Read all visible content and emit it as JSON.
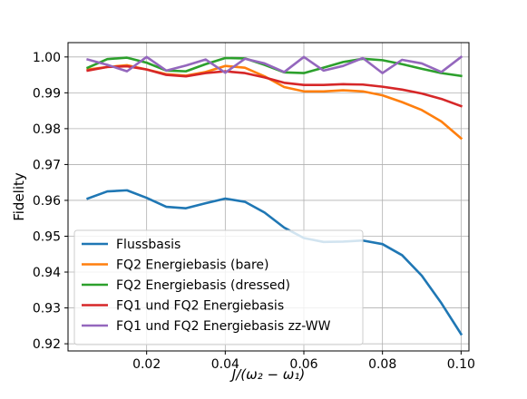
{
  "chart_data": {
    "type": "line",
    "title": "",
    "xlabel": "J/(ω₂ − ω₁)",
    "ylabel": "Fidelity",
    "xlim": [
      0.0,
      0.102
    ],
    "ylim": [
      0.918,
      1.004
    ],
    "x_ticks": [
      0.02,
      0.04,
      0.06,
      0.08,
      0.1
    ],
    "x_tick_labels": [
      "0.02",
      "0.04",
      "0.06",
      "0.08",
      "0.10"
    ],
    "y_ticks": [
      0.92,
      0.93,
      0.94,
      0.95,
      0.96,
      0.97,
      0.98,
      0.99,
      1.0
    ],
    "y_tick_labels": [
      "0.92",
      "0.93",
      "0.94",
      "0.95",
      "0.96",
      "0.97",
      "0.98",
      "0.99",
      "1.00"
    ],
    "grid": true,
    "legend_position": "lower-left",
    "x": [
      0.005,
      0.01,
      0.015,
      0.02,
      0.025,
      0.03,
      0.035,
      0.04,
      0.045,
      0.05,
      0.055,
      0.06,
      0.065,
      0.07,
      0.075,
      0.08,
      0.085,
      0.09,
      0.095,
      0.1
    ],
    "series": [
      {
        "name": "Flussbasis",
        "color": "#1f77b4",
        "values": [
          0.9605,
          0.9625,
          0.9628,
          0.9607,
          0.9582,
          0.9578,
          0.9592,
          0.9605,
          0.9596,
          0.9566,
          0.9524,
          0.9495,
          0.9484,
          0.9485,
          0.9488,
          0.9478,
          0.9447,
          0.939,
          0.9313,
          0.9227
        ]
      },
      {
        "name": "FQ2 Energiebasis (bare)",
        "color": "#ff7f0e",
        "values": [
          0.9965,
          0.9972,
          0.9977,
          0.9965,
          0.9952,
          0.9948,
          0.9958,
          0.9975,
          0.997,
          0.9946,
          0.9916,
          0.9904,
          0.9904,
          0.9907,
          0.9904,
          0.9893,
          0.9874,
          0.9852,
          0.982,
          0.9773
        ]
      },
      {
        "name": "FQ2 Energiebasis (dressed)",
        "color": "#2ca02c",
        "values": [
          0.997,
          0.9994,
          0.9998,
          0.9984,
          0.9962,
          0.996,
          0.998,
          0.9997,
          0.9996,
          0.9978,
          0.9957,
          0.9955,
          0.997,
          0.9986,
          0.9995,
          0.9991,
          0.998,
          0.9967,
          0.9955,
          0.9947
        ]
      },
      {
        "name": "FQ1 und FQ2 Energiebasis",
        "color": "#d62728",
        "values": [
          0.9962,
          0.9972,
          0.9974,
          0.9965,
          0.995,
          0.9946,
          0.9955,
          0.996,
          0.9955,
          0.9943,
          0.9928,
          0.9922,
          0.9922,
          0.9924,
          0.9923,
          0.9917,
          0.9909,
          0.9898,
          0.9883,
          0.9863
        ]
      },
      {
        "name": "FQ1 und FQ2 Energiebasis zz-WW",
        "color": "#9467bd",
        "values": [
          0.9993,
          0.9978,
          0.996,
          1.0,
          0.9962,
          0.9976,
          0.9993,
          0.9956,
          0.9995,
          0.9982,
          0.9958,
          1.0,
          0.9962,
          0.9975,
          0.9997,
          0.9955,
          0.9992,
          0.9982,
          0.9958,
          1.0
        ]
      }
    ]
  }
}
